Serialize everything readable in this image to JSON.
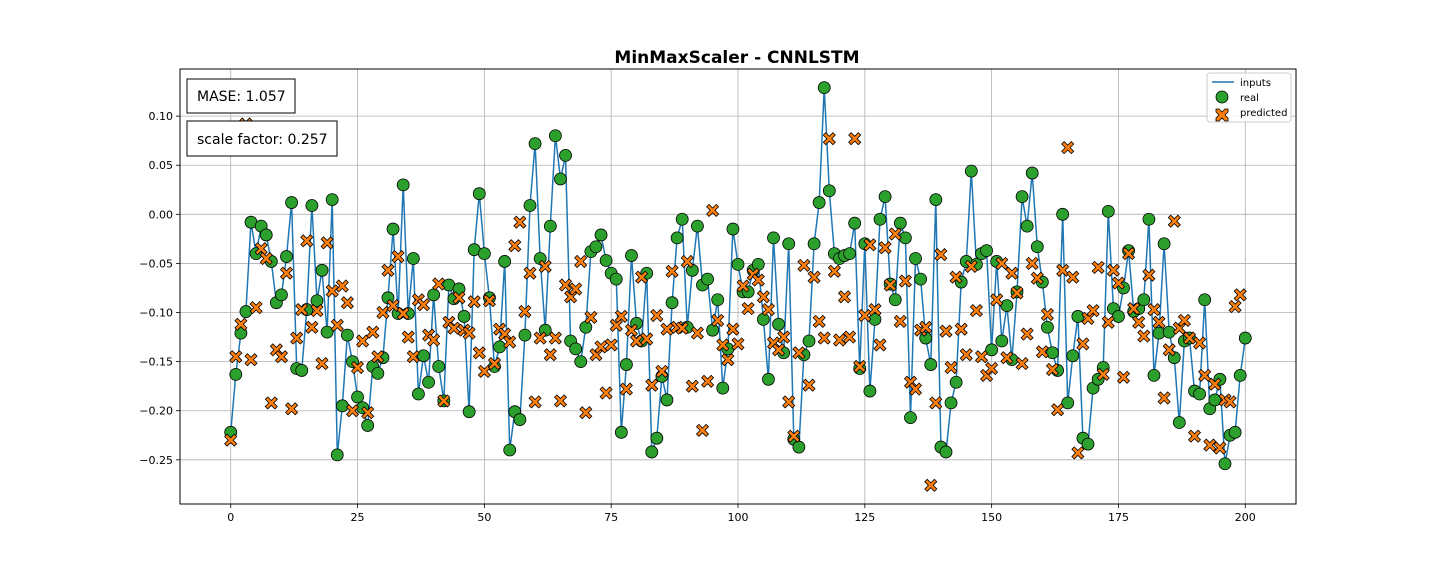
{
  "chart_data": {
    "type": "line",
    "title": "MinMaxScaler - CNNLSTM",
    "xlabel": "",
    "ylabel": "",
    "xlim": [
      -10,
      210
    ],
    "ylim": [
      -0.295,
      0.148
    ],
    "grid": true,
    "xticks": [
      0,
      25,
      50,
      75,
      100,
      125,
      150,
      175,
      200
    ],
    "xtick_labels": [
      "0",
      "25",
      "50",
      "75",
      "100",
      "125",
      "150",
      "175",
      "200"
    ],
    "yticks": [
      -0.25,
      -0.2,
      -0.15,
      -0.1,
      -0.05,
      0.0,
      0.05,
      0.1
    ],
    "ytick_labels": [
      "−0.25",
      "−0.20",
      "−0.15",
      "−0.10",
      "−0.05",
      "0.00",
      "0.05",
      "0.10"
    ],
    "legend": {
      "placement": "top-right",
      "entries": [
        {
          "label": "inputs",
          "kind": "line"
        },
        {
          "label": "real",
          "kind": "circle"
        },
        {
          "label": "predicted",
          "kind": "x"
        }
      ]
    },
    "annotations": {
      "mase": "MASE: 1.057",
      "scale_factor": "scale factor: 0.257"
    },
    "colors": {
      "inputs": "#1f77b4",
      "real": "#2ca02c",
      "predicted": "#ff7f0e",
      "edge": "#000000",
      "grid": "#b0b0b0"
    },
    "series": [
      {
        "name": "inputs",
        "values": [
          -0.222,
          -0.163,
          -0.121,
          -0.099,
          -0.008,
          -0.04,
          -0.012,
          -0.021,
          -0.048,
          -0.09,
          -0.082,
          -0.043,
          0.012,
          -0.157,
          -0.159,
          -0.097,
          0.009,
          -0.088,
          -0.057,
          -0.12,
          0.015,
          -0.245,
          -0.195,
          -0.123,
          -0.15,
          -0.186,
          -0.197,
          -0.215,
          -0.155,
          -0.162,
          -0.146,
          -0.085,
          -0.015,
          -0.101,
          0.03,
          -0.101,
          -0.045,
          -0.183,
          -0.144,
          -0.171,
          -0.082,
          -0.155,
          -0.19,
          -0.072,
          -0.086,
          -0.076,
          -0.104,
          -0.201,
          -0.036,
          0.021,
          -0.04,
          -0.085,
          -0.155,
          -0.135,
          -0.048,
          -0.24,
          -0.201,
          -0.209,
          -0.123,
          0.009,
          0.072,
          -0.045,
          -0.118,
          -0.012,
          0.08,
          0.036,
          0.06,
          -0.129,
          -0.137,
          -0.15,
          -0.115,
          -0.038,
          -0.033,
          -0.021,
          -0.047,
          -0.06,
          -0.066,
          -0.222,
          -0.153,
          -0.042,
          -0.111,
          -0.129,
          -0.06,
          -0.242,
          -0.228,
          -0.165,
          -0.189,
          -0.09,
          -0.024,
          -0.005,
          -0.115,
          -0.057,
          -0.012,
          -0.072,
          -0.066,
          -0.118,
          -0.087,
          -0.177,
          -0.137,
          -0.015,
          -0.051,
          -0.079,
          -0.079,
          -0.057,
          -0.051,
          -0.107,
          -0.168,
          -0.024,
          -0.112,
          -0.141,
          -0.03,
          -0.229,
          -0.237,
          -0.143,
          -0.129,
          -0.03,
          0.012,
          0.129,
          0.024,
          -0.04,
          -0.045,
          -0.042,
          -0.04,
          -0.009,
          -0.157,
          -0.03,
          -0.18,
          -0.107,
          -0.005,
          0.018,
          -0.071,
          -0.087,
          -0.009,
          -0.024,
          -0.207,
          -0.045,
          -0.066,
          -0.126,
          -0.153,
          0.015,
          -0.237,
          -0.242,
          -0.192,
          -0.171,
          -0.069,
          -0.048,
          0.044,
          -0.051,
          -0.04,
          -0.037,
          -0.138,
          -0.048,
          -0.129,
          -0.093,
          -0.148,
          -0.079,
          0.018,
          -0.012,
          0.042,
          -0.033,
          -0.069,
          -0.115,
          -0.141,
          -0.159,
          0.0,
          -0.192,
          -0.144,
          -0.104,
          -0.228,
          -0.234,
          -0.177,
          -0.168,
          -0.156,
          0.003,
          -0.096,
          -0.104,
          -0.075,
          -0.037,
          -0.099,
          -0.096,
          -0.087,
          -0.005,
          -0.164,
          -0.121,
          -0.03,
          -0.12,
          -0.146,
          -0.212,
          -0.129,
          -0.126,
          -0.18,
          -0.183,
          -0.087,
          -0.198,
          -0.189,
          -0.168,
          -0.254,
          -0.225,
          -0.222,
          -0.164,
          -0.126
        ]
      },
      {
        "name": "real",
        "values": [
          -0.222,
          -0.163,
          -0.121,
          -0.099,
          -0.008,
          -0.04,
          -0.012,
          -0.021,
          -0.048,
          -0.09,
          -0.082,
          -0.043,
          0.012,
          -0.157,
          -0.159,
          -0.097,
          0.009,
          -0.088,
          -0.057,
          -0.12,
          0.015,
          -0.245,
          -0.195,
          -0.123,
          -0.15,
          -0.186,
          -0.197,
          -0.215,
          -0.155,
          -0.162,
          -0.146,
          -0.085,
          -0.015,
          -0.101,
          0.03,
          -0.101,
          -0.045,
          -0.183,
          -0.144,
          -0.171,
          -0.082,
          -0.155,
          -0.19,
          -0.072,
          -0.086,
          -0.076,
          -0.104,
          -0.201,
          -0.036,
          0.021,
          -0.04,
          -0.085,
          -0.155,
          -0.135,
          -0.048,
          -0.24,
          -0.201,
          -0.209,
          -0.123,
          0.009,
          0.072,
          -0.045,
          -0.118,
          -0.012,
          0.08,
          0.036,
          0.06,
          -0.129,
          -0.137,
          -0.15,
          -0.115,
          -0.038,
          -0.033,
          -0.021,
          -0.047,
          -0.06,
          -0.066,
          -0.222,
          -0.153,
          -0.042,
          -0.111,
          -0.129,
          -0.06,
          -0.242,
          -0.228,
          -0.165,
          -0.189,
          -0.09,
          -0.024,
          -0.005,
          -0.115,
          -0.057,
          -0.012,
          -0.072,
          -0.066,
          -0.118,
          -0.087,
          -0.177,
          -0.137,
          -0.015,
          -0.051,
          -0.079,
          -0.079,
          -0.057,
          -0.051,
          -0.107,
          -0.168,
          -0.024,
          -0.112,
          -0.141,
          -0.03,
          -0.229,
          -0.237,
          -0.143,
          -0.129,
          -0.03,
          0.012,
          0.129,
          0.024,
          -0.04,
          -0.045,
          -0.042,
          -0.04,
          -0.009,
          -0.157,
          -0.03,
          -0.18,
          -0.107,
          -0.005,
          0.018,
          -0.071,
          -0.087,
          -0.009,
          -0.024,
          -0.207,
          -0.045,
          -0.066,
          -0.126,
          -0.153,
          0.015,
          -0.237,
          -0.242,
          -0.192,
          -0.171,
          -0.069,
          -0.048,
          0.044,
          -0.051,
          -0.04,
          -0.037,
          -0.138,
          -0.048,
          -0.129,
          -0.093,
          -0.148,
          -0.079,
          0.018,
          -0.012,
          0.042,
          -0.033,
          -0.069,
          -0.115,
          -0.141,
          -0.159,
          0.0,
          -0.192,
          -0.144,
          -0.104,
          -0.228,
          -0.234,
          -0.177,
          -0.168,
          -0.156,
          0.003,
          -0.096,
          -0.104,
          -0.075,
          -0.037,
          -0.099,
          -0.096,
          -0.087,
          -0.005,
          -0.164,
          -0.121,
          -0.03,
          -0.12,
          -0.146,
          -0.212,
          -0.129,
          -0.126,
          -0.18,
          -0.183,
          -0.087,
          -0.198,
          -0.189,
          -0.168,
          -0.254,
          -0.225,
          -0.222,
          -0.164,
          -0.126
        ]
      },
      {
        "name": "predicted",
        "values": [
          -0.23,
          -0.145,
          -0.112,
          0.092,
          -0.148,
          -0.095,
          -0.035,
          -0.045,
          -0.192,
          -0.138,
          -0.145,
          -0.06,
          -0.198,
          -0.126,
          -0.097,
          -0.027,
          -0.115,
          -0.098,
          -0.152,
          -0.029,
          -0.078,
          -0.113,
          -0.073,
          -0.09,
          -0.2,
          -0.156,
          -0.129,
          -0.202,
          -0.12,
          -0.145,
          -0.1,
          -0.057,
          -0.093,
          -0.043,
          -0.101,
          -0.125,
          -0.145,
          -0.087,
          -0.092,
          -0.123,
          -0.128,
          -0.071,
          -0.19,
          -0.11,
          -0.116,
          -0.085,
          -0.118,
          -0.121,
          -0.089,
          -0.141,
          -0.16,
          -0.088,
          -0.152,
          -0.117,
          -0.122,
          -0.13,
          -0.032,
          -0.008,
          -0.099,
          -0.06,
          -0.191,
          -0.126,
          -0.053,
          -0.143,
          -0.126,
          -0.19,
          -0.072,
          -0.084,
          -0.076,
          -0.048,
          -0.202,
          -0.105,
          -0.143,
          -0.135,
          -0.182,
          -0.133,
          -0.113,
          -0.104,
          -0.178,
          -0.118,
          -0.129,
          -0.064,
          -0.127,
          -0.174,
          -0.103,
          -0.16,
          -0.117,
          -0.058,
          -0.115,
          -0.116,
          -0.048,
          -0.175,
          -0.121,
          -0.22,
          -0.17,
          0.004,
          -0.108,
          -0.133,
          -0.148,
          -0.117,
          -0.132,
          -0.073,
          -0.096,
          -0.061,
          -0.067,
          -0.084,
          -0.097,
          -0.131,
          -0.138,
          -0.125,
          -0.191,
          -0.226,
          -0.141,
          -0.052,
          -0.174,
          -0.064,
          -0.109,
          -0.126,
          0.077,
          -0.058,
          -0.128,
          -0.084,
          -0.125,
          0.077,
          -0.155,
          -0.103,
          -0.031,
          -0.097,
          -0.133,
          -0.034,
          -0.072,
          -0.02,
          -0.109,
          -0.068,
          -0.171,
          -0.178,
          -0.118,
          -0.115,
          -0.276,
          -0.192,
          -0.041,
          -0.119,
          -0.156,
          -0.064,
          -0.117,
          -0.143,
          -0.053,
          -0.098,
          -0.145,
          -0.164,
          -0.157,
          -0.087,
          -0.05,
          -0.146,
          -0.06,
          -0.08,
          -0.152,
          -0.122,
          -0.05,
          -0.065,
          -0.14,
          -0.102,
          -0.158,
          -0.199,
          -0.057,
          0.068,
          -0.064,
          -0.243,
          -0.132,
          -0.106,
          -0.098,
          -0.054,
          -0.163,
          -0.11,
          -0.057,
          -0.07,
          -0.166,
          -0.04,
          -0.096,
          -0.11,
          -0.124,
          -0.062,
          -0.097,
          -0.11,
          -0.187,
          -0.138,
          -0.007,
          -0.116,
          -0.108,
          -0.126,
          -0.226,
          -0.131,
          -0.164,
          -0.235,
          -0.173,
          -0.238,
          -0.189,
          -0.191,
          -0.094,
          -0.082
        ]
      }
    ]
  }
}
